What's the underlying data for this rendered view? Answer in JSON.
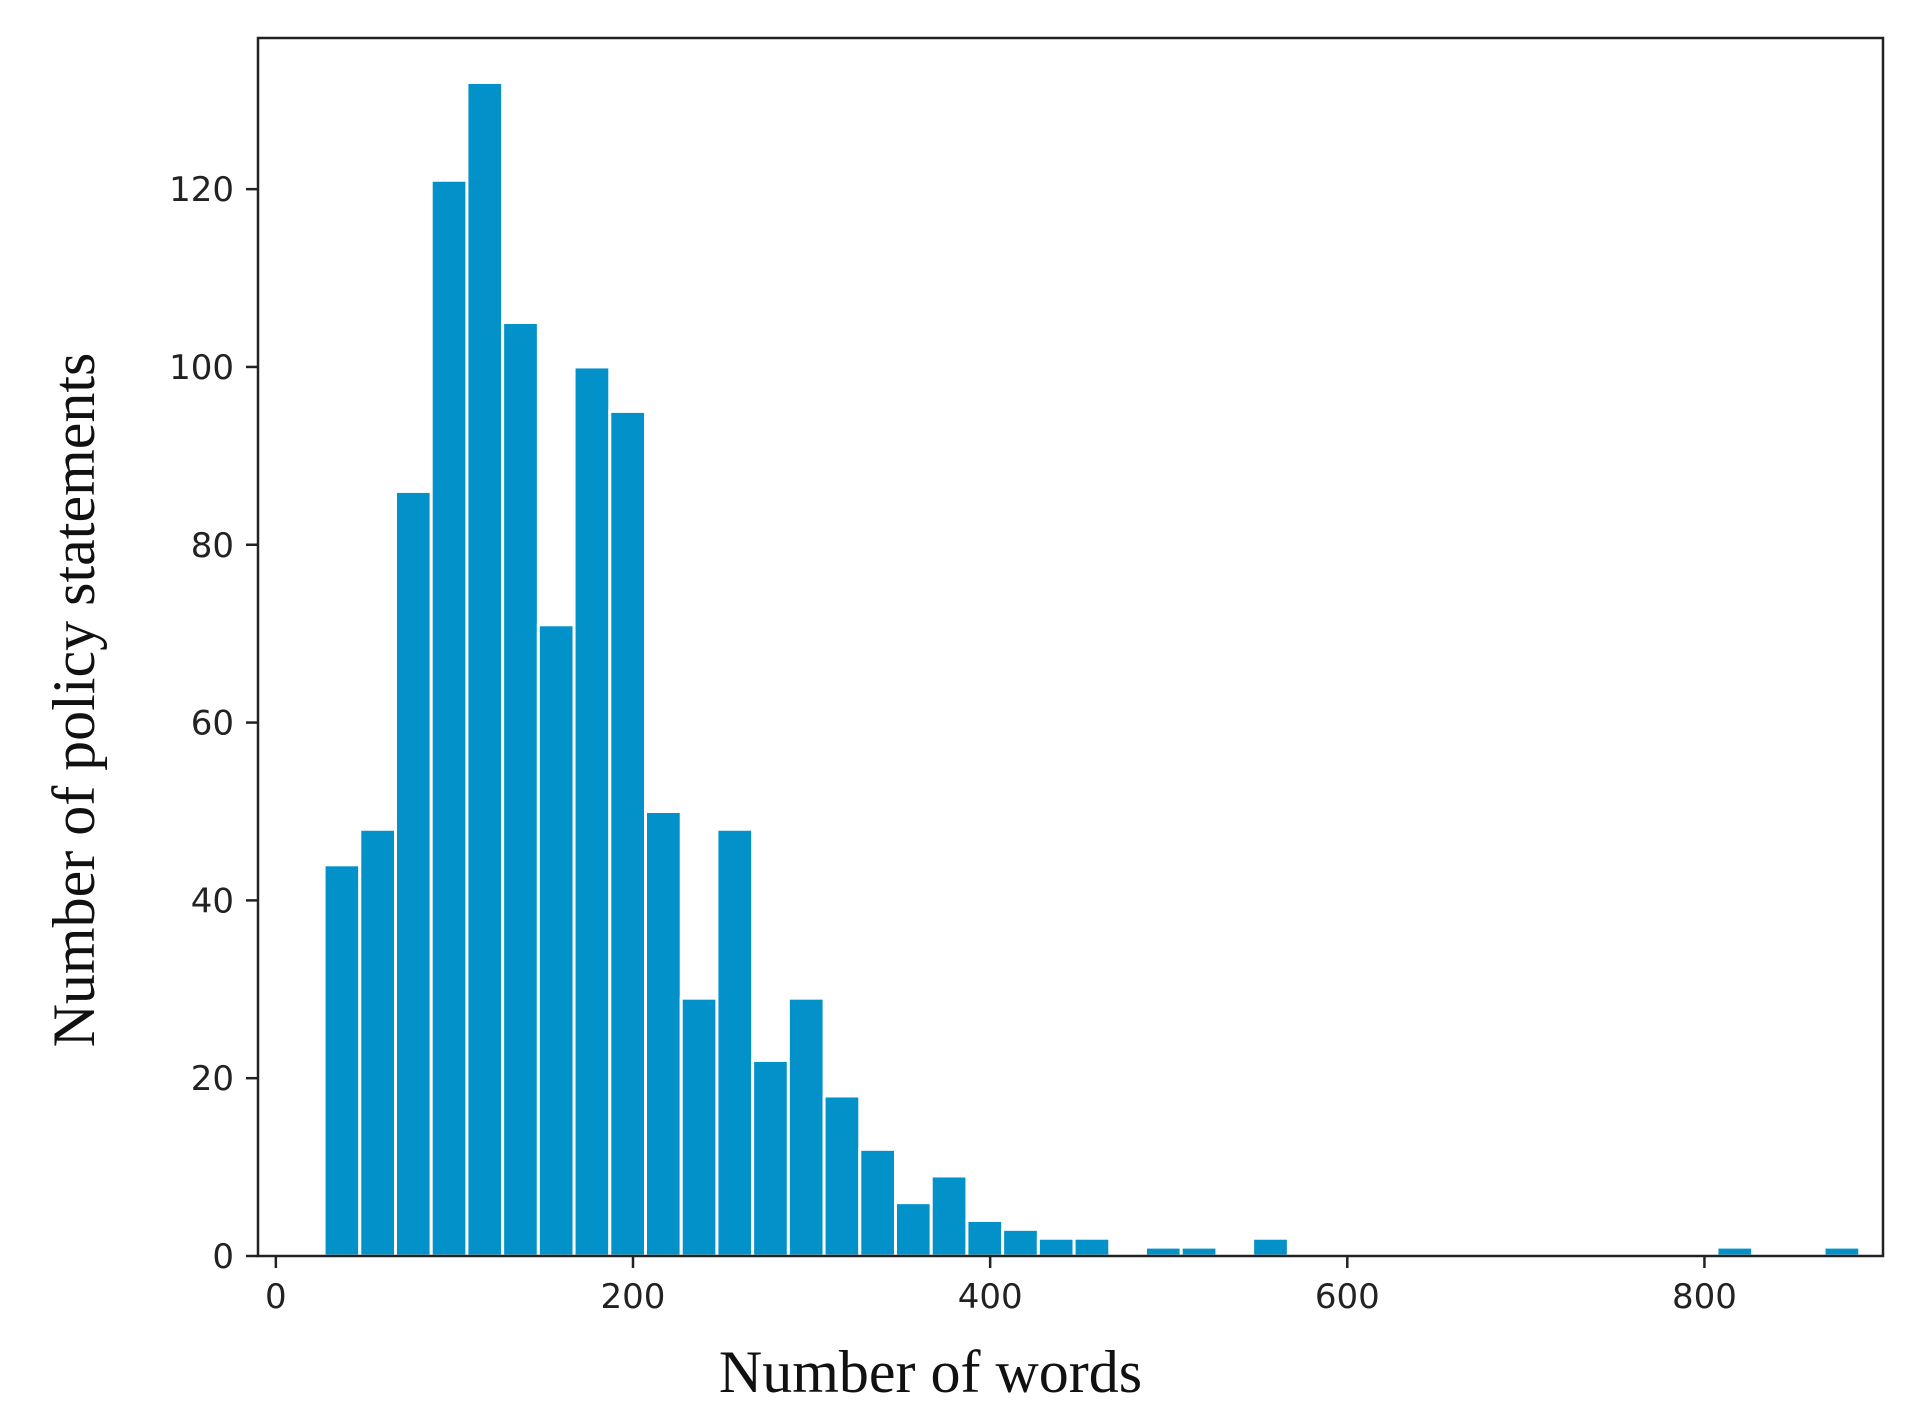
{
  "chart_data": {
    "type": "bar",
    "title": "",
    "xlabel": "Number of words",
    "ylabel": "Number of policy statements",
    "xlim": [
      -10,
      900
    ],
    "ylim": [
      0,
      137
    ],
    "x_ticks": [
      0,
      200,
      400,
      600,
      800
    ],
    "y_ticks": [
      0,
      20,
      40,
      60,
      80,
      100,
      120
    ],
    "bin_width": 20,
    "bar_color": "#0291c8",
    "grid": false,
    "series": [
      {
        "bins": [
          {
            "x0": 27,
            "x1": 47,
            "value": 44
          },
          {
            "x0": 47,
            "x1": 67,
            "value": 48
          },
          {
            "x0": 67,
            "x1": 87,
            "value": 86
          },
          {
            "x0": 87,
            "x1": 107,
            "value": 121
          },
          {
            "x0": 107,
            "x1": 127,
            "value": 132
          },
          {
            "x0": 127,
            "x1": 147,
            "value": 105
          },
          {
            "x0": 147,
            "x1": 167,
            "value": 71
          },
          {
            "x0": 167,
            "x1": 187,
            "value": 100
          },
          {
            "x0": 187,
            "x1": 207,
            "value": 95
          },
          {
            "x0": 207,
            "x1": 227,
            "value": 50
          },
          {
            "x0": 227,
            "x1": 247,
            "value": 29
          },
          {
            "x0": 247,
            "x1": 267,
            "value": 48
          },
          {
            "x0": 267,
            "x1": 287,
            "value": 22
          },
          {
            "x0": 287,
            "x1": 307,
            "value": 29
          },
          {
            "x0": 307,
            "x1": 327,
            "value": 18
          },
          {
            "x0": 327,
            "x1": 347,
            "value": 12
          },
          {
            "x0": 347,
            "x1": 367,
            "value": 6
          },
          {
            "x0": 367,
            "x1": 387,
            "value": 9
          },
          {
            "x0": 387,
            "x1": 407,
            "value": 4
          },
          {
            "x0": 407,
            "x1": 427,
            "value": 3
          },
          {
            "x0": 427,
            "x1": 447,
            "value": 2
          },
          {
            "x0": 447,
            "x1": 467,
            "value": 2
          },
          {
            "x0": 467,
            "x1": 487,
            "value": 0
          },
          {
            "x0": 487,
            "x1": 507,
            "value": 1
          },
          {
            "x0": 507,
            "x1": 527,
            "value": 1
          },
          {
            "x0": 527,
            "x1": 547,
            "value": 0
          },
          {
            "x0": 547,
            "x1": 567,
            "value": 2
          },
          {
            "x0": 807,
            "x1": 827,
            "value": 1
          },
          {
            "x0": 867,
            "x1": 887,
            "value": 1
          }
        ]
      }
    ]
  }
}
